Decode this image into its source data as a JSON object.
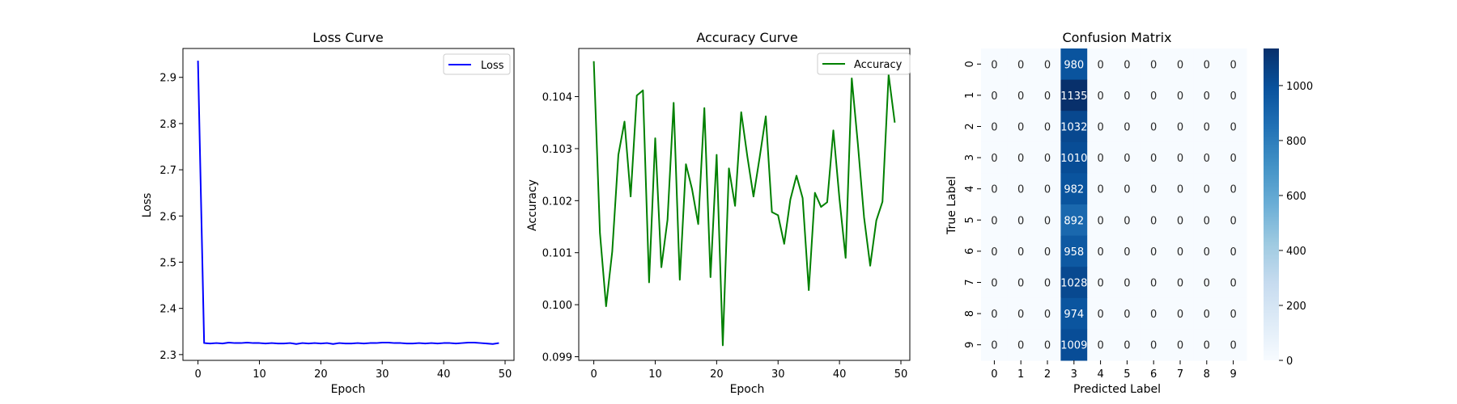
{
  "chart_data": [
    {
      "type": "line",
      "title": "Loss Curve",
      "xlabel": "Epoch",
      "ylabel": "Loss",
      "xlim": [
        -2.45,
        51.45
      ],
      "ylim": [
        2.2875,
        2.9625
      ],
      "xticks": [
        0,
        10,
        20,
        30,
        40,
        50
      ],
      "yticks": [
        2.3,
        2.4,
        2.5,
        2.6,
        2.7,
        2.8,
        2.9
      ],
      "grid": false,
      "legend_position": "top-right",
      "series": [
        {
          "name": "Loss",
          "color": "#0000ff",
          "x": [
            0,
            1,
            2,
            3,
            4,
            5,
            6,
            7,
            8,
            9,
            10,
            11,
            12,
            13,
            14,
            15,
            16,
            17,
            18,
            19,
            20,
            21,
            22,
            23,
            24,
            25,
            26,
            27,
            28,
            29,
            30,
            31,
            32,
            33,
            34,
            35,
            36,
            37,
            38,
            39,
            40,
            41,
            42,
            43,
            44,
            45,
            46,
            47,
            48,
            49
          ],
          "y": [
            2.936,
            2.325,
            2.324,
            2.325,
            2.324,
            2.326,
            2.325,
            2.325,
            2.326,
            2.325,
            2.325,
            2.324,
            2.325,
            2.324,
            2.324,
            2.325,
            2.323,
            2.325,
            2.324,
            2.325,
            2.324,
            2.325,
            2.323,
            2.325,
            2.324,
            2.324,
            2.325,
            2.324,
            2.325,
            2.325,
            2.326,
            2.326,
            2.325,
            2.325,
            2.324,
            2.324,
            2.325,
            2.324,
            2.325,
            2.324,
            2.325,
            2.325,
            2.324,
            2.325,
            2.326,
            2.326,
            2.325,
            2.324,
            2.323,
            2.325
          ]
        }
      ]
    },
    {
      "type": "line",
      "title": "Accuracy Curve",
      "xlabel": "Epoch",
      "ylabel": "Accuracy",
      "xlim": [
        -2.45,
        51.45
      ],
      "ylim": [
        0.09893,
        0.104925
      ],
      "xticks": [
        0,
        10,
        20,
        30,
        40,
        50
      ],
      "yticks": [
        0.099,
        0.1,
        0.101,
        0.102,
        0.103,
        0.104
      ],
      "ytick_labels": [
        "0.099",
        "0.100",
        "0.101",
        "0.102",
        "0.103",
        "0.104"
      ],
      "grid": false,
      "legend_position": "top-right",
      "series": [
        {
          "name": "Accuracy",
          "color": "#008000",
          "x": [
            0,
            1,
            2,
            3,
            4,
            5,
            6,
            7,
            8,
            9,
            10,
            11,
            12,
            13,
            14,
            15,
            16,
            17,
            18,
            19,
            20,
            21,
            22,
            23,
            24,
            25,
            26,
            27,
            28,
            29,
            30,
            31,
            32,
            33,
            34,
            35,
            36,
            37,
            38,
            39,
            40,
            41,
            42,
            43,
            44,
            45,
            46,
            47,
            48,
            49
          ],
          "y": [
            0.10468,
            0.10138,
            0.09997,
            0.10102,
            0.10288,
            0.10352,
            0.10208,
            0.10402,
            0.10412,
            0.10043,
            0.1032,
            0.10072,
            0.10163,
            0.10388,
            0.10048,
            0.1027,
            0.10222,
            0.10155,
            0.10378,
            0.10053,
            0.10288,
            0.09922,
            0.10262,
            0.1019,
            0.1037,
            0.10285,
            0.10208,
            0.10283,
            0.10362,
            0.10178,
            0.10172,
            0.10117,
            0.10202,
            0.10248,
            0.10205,
            0.10028,
            0.10215,
            0.10188,
            0.10197,
            0.10335,
            0.10203,
            0.1009,
            0.10435,
            0.10308,
            0.10168,
            0.10075,
            0.10162,
            0.10198,
            0.10442,
            0.1035
          ]
        }
      ]
    },
    {
      "type": "heatmap",
      "title": "Confusion Matrix",
      "xlabel": "Predicted Label",
      "ylabel": "True Label",
      "x_categories": [
        "0",
        "1",
        "2",
        "3",
        "4",
        "5",
        "6",
        "7",
        "8",
        "9"
      ],
      "y_categories": [
        "0",
        "1",
        "2",
        "3",
        "4",
        "5",
        "6",
        "7",
        "8",
        "9"
      ],
      "values": [
        [
          0,
          0,
          0,
          980,
          0,
          0,
          0,
          0,
          0,
          0
        ],
        [
          0,
          0,
          0,
          1135,
          0,
          0,
          0,
          0,
          0,
          0
        ],
        [
          0,
          0,
          0,
          1032,
          0,
          0,
          0,
          0,
          0,
          0
        ],
        [
          0,
          0,
          0,
          1010,
          0,
          0,
          0,
          0,
          0,
          0
        ],
        [
          0,
          0,
          0,
          982,
          0,
          0,
          0,
          0,
          0,
          0
        ],
        [
          0,
          0,
          0,
          892,
          0,
          0,
          0,
          0,
          0,
          0
        ],
        [
          0,
          0,
          0,
          958,
          0,
          0,
          0,
          0,
          0,
          0
        ],
        [
          0,
          0,
          0,
          1028,
          0,
          0,
          0,
          0,
          0,
          0
        ],
        [
          0,
          0,
          0,
          974,
          0,
          0,
          0,
          0,
          0,
          0
        ],
        [
          0,
          0,
          0,
          1009,
          0,
          0,
          0,
          0,
          0,
          0
        ]
      ],
      "colormap": "Blues",
      "colorbar_range": [
        0,
        1135
      ],
      "colorbar_ticks": [
        0,
        200,
        400,
        600,
        800,
        1000
      ]
    }
  ]
}
